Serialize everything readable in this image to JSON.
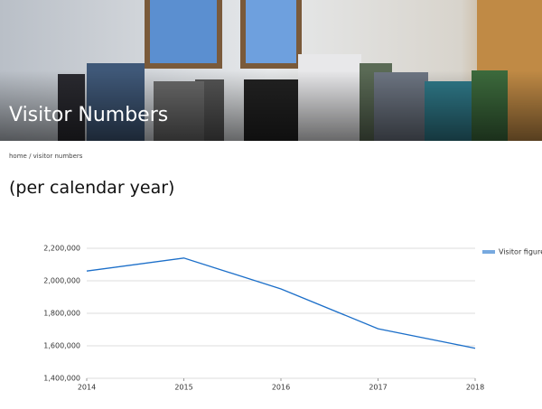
{
  "header": {
    "title": "Visitor Numbers"
  },
  "breadcrumb": "home / visitor numbers",
  "heading": "(per calendar year)",
  "chart_data": {
    "type": "line",
    "x": [
      2014,
      2015,
      2016,
      2017,
      2018
    ],
    "xlim": [
      2014,
      2018
    ],
    "xticks": [
      2014,
      2015,
      2016,
      2017,
      2018
    ],
    "series": [
      {
        "name": "Visitor figures",
        "color": "#1c6fc9",
        "values": [
          2060000,
          2140000,
          1950000,
          1705000,
          1585000
        ]
      }
    ],
    "ylim": [
      1400000,
      2200000
    ],
    "yticks": [
      {
        "value": 1400000,
        "label": "1,400,000"
      },
      {
        "value": 1600000,
        "label": "1,600,000"
      },
      {
        "value": 1800000,
        "label": "1,800,000"
      },
      {
        "value": 2000000,
        "label": "2,000,000"
      },
      {
        "value": 2200000,
        "label": "2,200,000"
      }
    ],
    "grid": true,
    "legend": "right"
  }
}
